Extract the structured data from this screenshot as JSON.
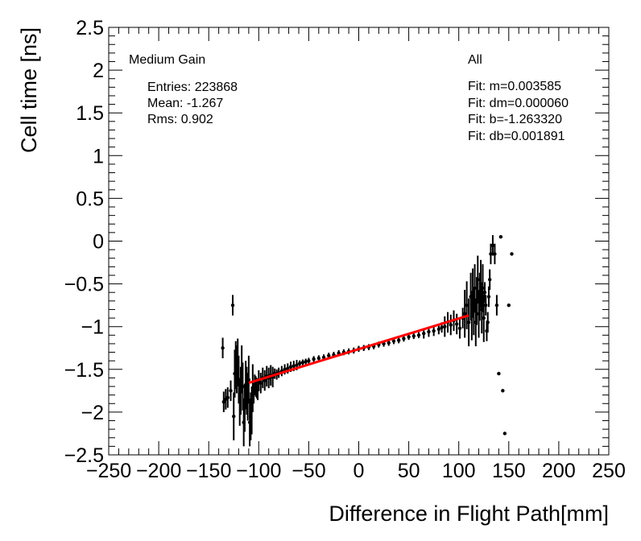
{
  "chart_data": {
    "type": "scatter",
    "title": "",
    "xlabel": "Difference in Flight Path[mm]",
    "ylabel": "Cell time [ns]",
    "xlim": [
      -250,
      250
    ],
    "ylim": [
      -2.5,
      2.5
    ],
    "x_ticks": [
      -250,
      -200,
      -150,
      -100,
      -50,
      0,
      50,
      100,
      150,
      200,
      250
    ],
    "y_ticks": [
      -2.5,
      -2,
      -1.5,
      -1,
      -0.5,
      0,
      0.5,
      1,
      1.5,
      2,
      2.5
    ],
    "x_tick_labels": [
      "−250",
      "−200",
      "−150",
      "−100",
      "−50",
      "0",
      "50",
      "100",
      "150",
      "200",
      "250"
    ],
    "y_tick_labels": [
      "−2.5",
      "−2",
      "−1.5",
      "−1",
      "−0.5",
      "0",
      "0.5",
      "1",
      "1.5",
      "2",
      "2.5"
    ],
    "grid": false,
    "series": [
      {
        "x": [
          -136,
          -135,
          -133,
          -131,
          -128,
          -126,
          -125,
          -124,
          -123,
          -122,
          -121,
          -120,
          -119,
          -118,
          -117,
          -116,
          -115,
          -114,
          -113,
          -112,
          -111,
          -110,
          -109,
          -108,
          -107,
          -106,
          -105,
          -104,
          -103,
          -102,
          -101,
          -100,
          -98,
          -96,
          -94,
          -92,
          -90,
          -88,
          -86,
          -84,
          -82,
          -80,
          -77,
          -74,
          -71,
          -68,
          -65,
          -62,
          -59,
          -56,
          -53,
          -50,
          -45,
          -40,
          -35,
          -30,
          -25,
          -20,
          -15,
          -10,
          -5,
          0,
          5,
          10,
          15,
          20,
          25,
          30,
          35,
          40,
          45,
          50,
          55,
          60,
          65,
          70,
          75,
          80,
          83,
          86,
          89,
          92,
          95,
          98,
          101,
          104,
          106,
          108,
          110,
          112,
          113,
          114,
          115,
          116,
          117,
          118,
          119,
          120,
          121,
          122,
          123,
          124,
          125,
          126,
          127,
          128,
          129,
          130,
          131,
          132,
          134,
          136,
          138,
          140,
          142,
          144,
          146,
          150,
          153
        ],
        "y": [
          -1.25,
          -1.88,
          -1.85,
          -1.83,
          -1.75,
          -0.75,
          -2.05,
          -1.55,
          -1.45,
          -1.5,
          -1.42,
          -1.62,
          -1.88,
          -1.75,
          -1.5,
          -1.7,
          -2.12,
          -1.95,
          -1.68,
          -1.75,
          -1.82,
          -1.62,
          -2.12,
          -2.05,
          -1.98,
          -1.72,
          -1.78,
          -1.68,
          -1.7,
          -1.72,
          -1.74,
          -1.63,
          -1.66,
          -1.6,
          -1.63,
          -1.58,
          -1.6,
          -1.57,
          -1.59,
          -1.55,
          -1.56,
          -1.54,
          -1.52,
          -1.5,
          -1.49,
          -1.47,
          -1.46,
          -1.45,
          -1.43,
          -1.42,
          -1.41,
          -1.4,
          -1.38,
          -1.37,
          -1.36,
          -1.34,
          -1.33,
          -1.31,
          -1.3,
          -1.29,
          -1.28,
          -1.26,
          -1.25,
          -1.24,
          -1.23,
          -1.21,
          -1.2,
          -1.19,
          -1.17,
          -1.16,
          -1.14,
          -1.12,
          -1.11,
          -1.1,
          -1.08,
          -1.06,
          -1.05,
          -1.03,
          -1.01,
          -1.0,
          -0.95,
          -0.98,
          -0.93,
          -0.97,
          -1.02,
          -0.9,
          -0.85,
          -0.75,
          -0.95,
          -0.65,
          -0.88,
          -0.6,
          -0.82,
          -0.55,
          -0.95,
          -0.7,
          -0.45,
          -0.85,
          -0.65,
          -0.5,
          -0.8,
          -0.55,
          -0.9,
          -0.6,
          -0.75,
          -1.05,
          -0.95,
          -0.65,
          -0.45,
          -0.15,
          -0.05,
          -0.15,
          -0.75,
          -1.55,
          0.05,
          -1.75,
          -2.25,
          -0.75,
          -0.15
        ]
      }
    ],
    "fit_line": {
      "color": "#ff0000",
      "x": [
        -110,
        110
      ],
      "y": [
        -1.658,
        -0.869
      ]
    },
    "stats": {
      "title": "Medium Gain",
      "entries": "Entries: 223868",
      "mean": "Mean: -1.267",
      "rms": "Rms: 0.902"
    },
    "fit_stats": {
      "title": "All",
      "m": "Fit: m=0.003585",
      "dm": "Fit: dm=0.000060",
      "b": "Fit: b=-1.263320",
      "db": "Fit: db=0.001891"
    }
  }
}
